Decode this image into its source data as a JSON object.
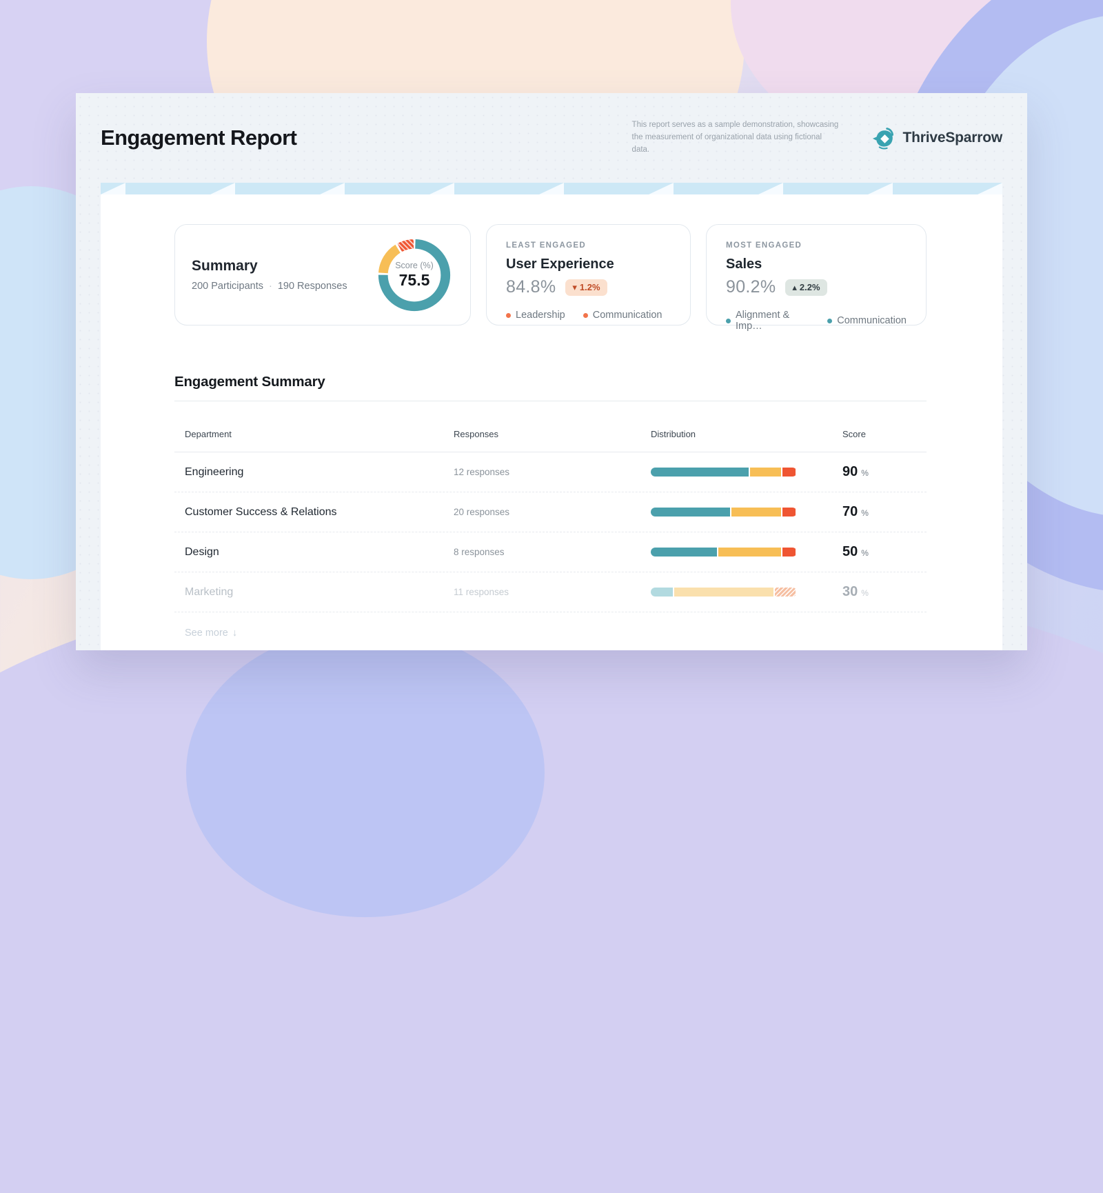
{
  "header": {
    "title": "Engagement Report",
    "note": "This report serves as a sample demonstration, showcasing the measurement of organizational data using fictional data.",
    "brand": "ThriveSparrow"
  },
  "summary_card": {
    "title": "Summary",
    "participants": "200 Participants",
    "dot": "·",
    "responses": "190 Responses",
    "donut": {
      "center_label": "Score (%)",
      "center_value": "75.5",
      "segments": [
        {
          "name": "engaged",
          "value": 75.5,
          "color": "#4ba0ac",
          "hatched": false
        },
        {
          "name": "neutral",
          "value": 16,
          "color": "#f7be56",
          "hatched": false
        },
        {
          "name": "disengaged",
          "value": 8.5,
          "color": "#ef5532",
          "hatched": true
        }
      ]
    }
  },
  "least_engaged_card": {
    "label": "LEAST ENGAGED",
    "title": "User Experience",
    "value": "84.8%",
    "delta": "1.2%",
    "delta_icon": "▾",
    "delta_bg": "#fbe0ce",
    "delta_color": "#bf4b26",
    "dot_color": "#f2744b",
    "drivers": [
      "Leadership",
      "Communication"
    ]
  },
  "most_engaged_card": {
    "label": "MOST ENGAGED",
    "title": "Sales",
    "value": "90.2%",
    "delta": "2.2%",
    "delta_icon": "▴",
    "delta_bg": "#dee6e2",
    "delta_color": "#333e44",
    "dot_color": "#4ba0ac",
    "drivers": [
      "Alignment & Imp…",
      "Communication"
    ]
  },
  "engagement_summary": {
    "heading": "Engagement Summary",
    "columns": [
      "Department",
      "Responses",
      "Distribution",
      "Score"
    ],
    "score_unit": "%",
    "palette": {
      "teal": "#4ba0ac",
      "yellow": "#f7be56",
      "red": "#ef5532",
      "teal_muted": "#b2dae0",
      "yellow_muted": "#fae0ad",
      "red_muted": "#f6bfa2"
    },
    "rows": [
      {
        "department": "Engineering",
        "responses": "12 responses",
        "distribution": [
          68,
          22,
          10
        ],
        "score": "90",
        "muted": false
      },
      {
        "department": "Customer Success & Relations",
        "responses": "20 responses",
        "distribution": [
          55,
          35,
          10
        ],
        "score": "70",
        "muted": false
      },
      {
        "department": "Design",
        "responses": "8 responses",
        "distribution": [
          46,
          44,
          10
        ],
        "score": "50",
        "muted": false
      },
      {
        "department": "Marketing",
        "responses": "11 responses",
        "distribution": [
          16,
          69,
          15
        ],
        "score": "30",
        "muted": true
      }
    ],
    "see_more": "See more",
    "see_more_icon": "↓"
  }
}
